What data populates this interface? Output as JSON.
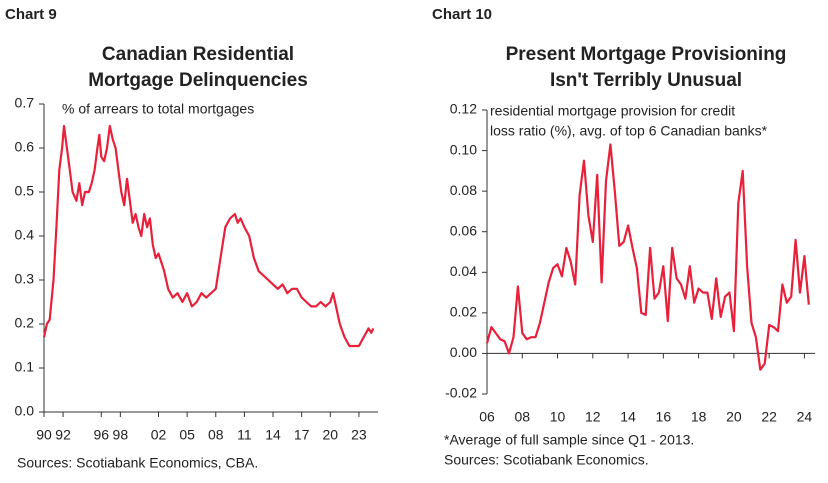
{
  "chart_data": [
    {
      "type": "line",
      "label": "Chart 9",
      "title": [
        "Canadian Residential",
        "Mortgage Delinquencies"
      ],
      "annotation": [
        "% of arrears to total mortgages"
      ],
      "notes": [
        "Sources: Scotiabank Economics, CBA."
      ],
      "color": "#e8203a",
      "xlim": [
        1990,
        2025
      ],
      "ylim": [
        0,
        0.7
      ],
      "xticks": [
        {
          "value": 1990,
          "label": "90"
        },
        {
          "value": 1992,
          "label": "92"
        },
        {
          "value": 1996,
          "label": "96"
        },
        {
          "value": 1998,
          "label": "98"
        },
        {
          "value": 2002,
          "label": "02"
        },
        {
          "value": 2005,
          "label": "05"
        },
        {
          "value": 2008,
          "label": "08"
        },
        {
          "value": 2011,
          "label": "11"
        },
        {
          "value": 2014,
          "label": "14"
        },
        {
          "value": 2017,
          "label": "17"
        },
        {
          "value": 2020,
          "label": "20"
        },
        {
          "value": 2023,
          "label": "23"
        }
      ],
      "yticks": [
        {
          "value": 0,
          "label": "0.0"
        },
        0.1,
        0.2,
        0.3,
        0.4,
        0.5,
        0.6,
        0.7
      ],
      "x": [
        1990.0,
        1990.3,
        1990.6,
        1991.0,
        1991.3,
        1991.6,
        1991.9,
        1992.1,
        1992.4,
        1992.7,
        1993.0,
        1993.4,
        1993.7,
        1994.0,
        1994.3,
        1994.7,
        1995.0,
        1995.3,
        1995.6,
        1995.8,
        1996.0,
        1996.3,
        1996.6,
        1996.9,
        1997.2,
        1997.5,
        1997.8,
        1998.1,
        1998.4,
        1998.7,
        1999.0,
        1999.3,
        1999.6,
        1999.9,
        2000.2,
        2000.5,
        2000.8,
        2001.1,
        2001.4,
        2001.7,
        2002.0,
        2002.3,
        2002.6,
        2003.0,
        2003.5,
        2004.0,
        2004.5,
        2005.0,
        2005.5,
        2006.0,
        2006.5,
        2007.0,
        2007.5,
        2008.0,
        2008.5,
        2009.0,
        2009.5,
        2010.0,
        2010.3,
        2010.6,
        2011.0,
        2011.5,
        2012.0,
        2012.5,
        2013.0,
        2013.5,
        2014.0,
        2014.5,
        2015.0,
        2015.5,
        2016.0,
        2016.5,
        2017.0,
        2017.5,
        2018.0,
        2018.5,
        2019.0,
        2019.5,
        2020.0,
        2020.3,
        2020.6,
        2021.0,
        2021.5,
        2022.0,
        2022.5,
        2023.0,
        2023.5,
        2024.0,
        2024.3,
        2024.5
      ],
      "values": [
        0.17,
        0.2,
        0.21,
        0.3,
        0.42,
        0.55,
        0.6,
        0.65,
        0.6,
        0.55,
        0.5,
        0.48,
        0.52,
        0.47,
        0.5,
        0.5,
        0.52,
        0.55,
        0.6,
        0.63,
        0.58,
        0.57,
        0.6,
        0.65,
        0.62,
        0.6,
        0.55,
        0.5,
        0.47,
        0.53,
        0.48,
        0.43,
        0.45,
        0.42,
        0.4,
        0.45,
        0.42,
        0.44,
        0.38,
        0.35,
        0.36,
        0.34,
        0.32,
        0.28,
        0.26,
        0.27,
        0.25,
        0.27,
        0.24,
        0.25,
        0.27,
        0.26,
        0.27,
        0.28,
        0.35,
        0.42,
        0.44,
        0.45,
        0.43,
        0.44,
        0.42,
        0.4,
        0.35,
        0.32,
        0.31,
        0.3,
        0.29,
        0.28,
        0.29,
        0.27,
        0.28,
        0.28,
        0.26,
        0.25,
        0.24,
        0.24,
        0.25,
        0.24,
        0.25,
        0.27,
        0.24,
        0.2,
        0.17,
        0.15,
        0.15,
        0.15,
        0.17,
        0.19,
        0.18,
        0.19
      ]
    },
    {
      "type": "line",
      "label": "Chart 10",
      "title": [
        "Present Mortgage Provisioning",
        "Isn't Terribly Unusual"
      ],
      "annotation": [
        "residential mortgage provision for credit",
        "loss ratio (%), avg. of top 6 Canadian banks*"
      ],
      "notes": [
        "*Average of full sample since Q1 - 2013.",
        "Sources: Scotiabank Economics."
      ],
      "color": "#e8203a",
      "xlim": [
        2006,
        2024.6
      ],
      "ylim": [
        -0.02,
        0.12
      ],
      "xticks": [
        {
          "value": 2006,
          "label": "06"
        },
        {
          "value": 2008,
          "label": "08"
        },
        {
          "value": 2010,
          "label": "10"
        },
        {
          "value": 2012,
          "label": "12"
        },
        {
          "value": 2014,
          "label": "14"
        },
        {
          "value": 2016,
          "label": "16"
        },
        {
          "value": 2018,
          "label": "18"
        },
        {
          "value": 2020,
          "label": "20"
        },
        {
          "value": 2022,
          "label": "22"
        },
        {
          "value": 2024,
          "label": "24"
        }
      ],
      "yticks": [
        -0.02,
        {
          "value": 0,
          "label": "0.00"
        },
        0.02,
        0.04,
        0.06,
        0.08,
        {
          "value": 0.1,
          "label": "0.10"
        },
        0.12
      ],
      "x": [
        2006.0,
        2006.25,
        2006.5,
        2006.75,
        2007.0,
        2007.25,
        2007.5,
        2007.75,
        2008.0,
        2008.25,
        2008.5,
        2008.75,
        2009.0,
        2009.25,
        2009.5,
        2009.75,
        2010.0,
        2010.25,
        2010.5,
        2010.75,
        2011.0,
        2011.25,
        2011.5,
        2011.75,
        2012.0,
        2012.25,
        2012.5,
        2012.75,
        2013.0,
        2013.25,
        2013.5,
        2013.75,
        2014.0,
        2014.25,
        2014.5,
        2014.75,
        2015.0,
        2015.25,
        2015.5,
        2015.75,
        2016.0,
        2016.25,
        2016.5,
        2016.75,
        2017.0,
        2017.25,
        2017.5,
        2017.75,
        2018.0,
        2018.25,
        2018.5,
        2018.75,
        2019.0,
        2019.25,
        2019.5,
        2019.75,
        2020.0,
        2020.25,
        2020.5,
        2020.75,
        2021.0,
        2021.25,
        2021.5,
        2021.75,
        2022.0,
        2022.25,
        2022.5,
        2022.75,
        2023.0,
        2023.25,
        2023.5,
        2023.75,
        2024.0,
        2024.25
      ],
      "values": [
        0.005,
        0.013,
        0.01,
        0.007,
        0.006,
        0.0,
        0.008,
        0.033,
        0.01,
        0.007,
        0.008,
        0.008,
        0.015,
        0.025,
        0.035,
        0.042,
        0.044,
        0.038,
        0.052,
        0.045,
        0.034,
        0.078,
        0.095,
        0.068,
        0.055,
        0.088,
        0.035,
        0.085,
        0.103,
        0.08,
        0.053,
        0.055,
        0.063,
        0.052,
        0.042,
        0.02,
        0.019,
        0.052,
        0.027,
        0.03,
        0.043,
        0.016,
        0.052,
        0.037,
        0.034,
        0.027,
        0.043,
        0.025,
        0.032,
        0.03,
        0.03,
        0.017,
        0.037,
        0.018,
        0.028,
        0.03,
        0.011,
        0.074,
        0.09,
        0.043,
        0.015,
        0.008,
        -0.008,
        -0.005,
        0.014,
        0.013,
        0.011,
        0.034,
        0.025,
        0.028,
        0.056,
        0.03,
        0.048,
        0.024
      ]
    }
  ]
}
